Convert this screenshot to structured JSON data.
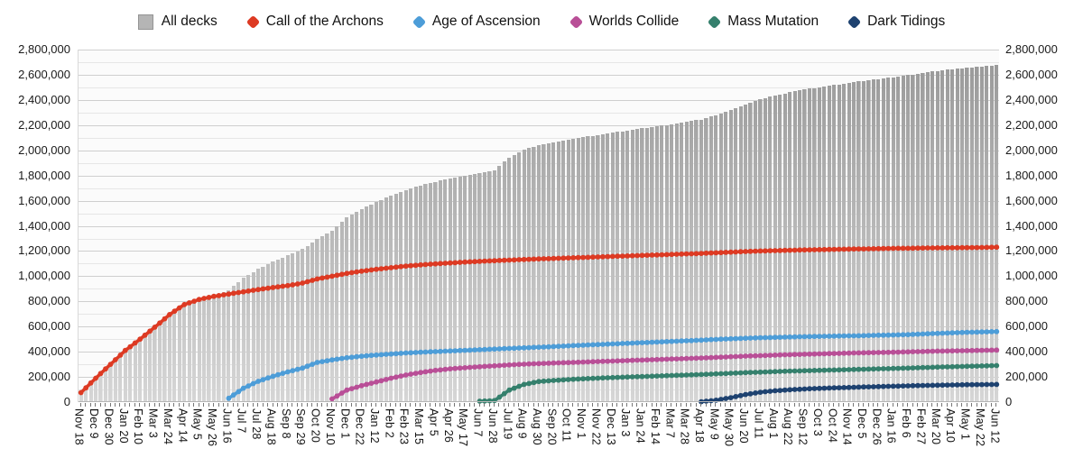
{
  "legend": {
    "items": [
      {
        "label": "All decks",
        "marker": "square",
        "color": "#b5b5b5"
      },
      {
        "label": "Call of the Archons",
        "marker": "diamond",
        "color": "#dd3a23"
      },
      {
        "label": "Age of Ascension",
        "marker": "diamond",
        "color": "#4d9dd8"
      },
      {
        "label": "Worlds Collide",
        "marker": "diamond",
        "color": "#b94f97"
      },
      {
        "label": "Mass Mutation",
        "marker": "diamond",
        "color": "#35806d"
      },
      {
        "label": "Dark Tidings",
        "marker": "diamond",
        "color": "#1e4270"
      }
    ]
  },
  "chart_data": {
    "type": "bar",
    "note_types": "All decks rendered as weekly bars; five expansion sets rendered as beaded cumulative lines",
    "points_per_label": 3,
    "x_labels": [
      "Nov 18",
      "Dec 9",
      "Dec 30",
      "Jan 20",
      "Feb 10",
      "Mar 3",
      "Mar 24",
      "Apr 14",
      "May 5",
      "May 26",
      "Jun 16",
      "Jul 7",
      "Jul 28",
      "Aug 18",
      "Sep 8",
      "Sep 29",
      "Oct 20",
      "Nov 10",
      "Dec 1",
      "Dec 22",
      "Jan 12",
      "Feb 2",
      "Feb 23",
      "Mar 15",
      "Apr 5",
      "Apr 26",
      "May 17",
      "Jun 7",
      "Jun 28",
      "Jul 19",
      "Aug 9",
      "Aug 30",
      "Sep 20",
      "Oct 11",
      "Nov 1",
      "Nov 22",
      "Dec 13",
      "Jan 3",
      "Jan 24",
      "Feb 14",
      "Mar 7",
      "Mar 28",
      "Apr 18",
      "May 9",
      "May 30",
      "Jun 20",
      "Jul 11",
      "Aug 1",
      "Aug 22",
      "Sep 12",
      "Oct 3",
      "Oct 24",
      "Nov 14",
      "Dec 5",
      "Dec 26",
      "Jan 16",
      "Feb 6",
      "Feb 27",
      "Mar 20",
      "Apr 10",
      "May 1",
      "May 22",
      "Jun 12"
    ],
    "y_axis": {
      "min": 0,
      "max": 2800000,
      "major_step": 200000,
      "minor_step": 100000,
      "tick_labels": [
        "0",
        "200,000",
        "400,000",
        "600,000",
        "800,000",
        "1,000,000",
        "1,200,000",
        "1,400,000",
        "1,600,000",
        "1,800,000",
        "2,000,000",
        "2,200,000",
        "2,400,000",
        "2,600,000",
        "2,800,000"
      ],
      "sides": [
        "left",
        "right"
      ]
    },
    "series": [
      {
        "name": "All decks",
        "type": "bar",
        "color": "#b5b5b5",
        "values": [
          75000,
          190000,
          300000,
          410000,
          500000,
          595000,
          695000,
          775000,
          815000,
          840000,
          888000,
          986000,
          1059000,
          1115000,
          1165000,
          1215000,
          1293000,
          1360000,
          1469000,
          1534000,
          1589000,
          1640000,
          1685000,
          1721000,
          1751000,
          1775000,
          1796000,
          1822000,
          1844000,
          1944000,
          2005000,
          2042000,
          2064000,
          2085000,
          2104000,
          2122000,
          2140000,
          2157000,
          2174000,
          2191000,
          2208000,
          2225000,
          2245000,
          2279000,
          2318000,
          2366000,
          2404000,
          2435000,
          2461000,
          2483000,
          2502000,
          2519000,
          2535000,
          2552000,
          2566000,
          2581000,
          2597000,
          2615000,
          2631000,
          2644000,
          2656000,
          2667000,
          2678000
        ]
      },
      {
        "name": "Call of the Archons",
        "type": "line",
        "color": "#dd3a23",
        "values": [
          75000,
          190000,
          300000,
          410000,
          500000,
          595000,
          695000,
          775000,
          815000,
          840000,
          858000,
          876000,
          894000,
          910000,
          925000,
          945000,
          978000,
          1000000,
          1022000,
          1040000,
          1055000,
          1068000,
          1080000,
          1090000,
          1098000,
          1105000,
          1112000,
          1118000,
          1123000,
          1128000,
          1133000,
          1137000,
          1141000,
          1145000,
          1149000,
          1153000,
          1157000,
          1161000,
          1165000,
          1169000,
          1173000,
          1177000,
          1181000,
          1186000,
          1191000,
          1196000,
          1200000,
          1203000,
          1206000,
          1209000,
          1211000,
          1213000,
          1215000,
          1217000,
          1219000,
          1221000,
          1222000,
          1224000,
          1225000,
          1226000,
          1227000,
          1228000,
          1230000
        ]
      },
      {
        "name": "Age of Ascension",
        "type": "line",
        "color": "#4d9dd8",
        "values": [
          null,
          null,
          null,
          null,
          null,
          null,
          null,
          null,
          null,
          null,
          30000,
          110000,
          165000,
          205000,
          240000,
          270000,
          315000,
          335000,
          352000,
          364000,
          374000,
          382000,
          390000,
          396000,
          401000,
          406000,
          411000,
          416000,
          421000,
          426000,
          431000,
          436000,
          441000,
          447000,
          452000,
          457000,
          462000,
          467000,
          472000,
          477000,
          482000,
          487000,
          492000,
          498000,
          503000,
          507000,
          511000,
          514000,
          517000,
          520000,
          522000,
          524000,
          526000,
          528000,
          531000,
          533000,
          536000,
          541000,
          546000,
          550000,
          554000,
          557000,
          560000
        ]
      },
      {
        "name": "Worlds Collide",
        "type": "line",
        "color": "#b94f97",
        "values": [
          null,
          null,
          null,
          null,
          null,
          null,
          null,
          null,
          null,
          null,
          null,
          null,
          null,
          null,
          null,
          null,
          null,
          25000,
          95000,
          130000,
          160000,
          190000,
          215000,
          235000,
          252000,
          264000,
          273000,
          281000,
          288000,
          295000,
          301000,
          306000,
          310000,
          314000,
          318000,
          322000,
          326000,
          330000,
          334000,
          338000,
          342000,
          346000,
          350000,
          355000,
          360000,
          365000,
          369000,
          373000,
          377000,
          380000,
          383000,
          386000,
          389000,
          392000,
          394000,
          396000,
          399000,
          402000,
          405000,
          407000,
          409000,
          411000,
          413000
        ]
      },
      {
        "name": "Mass Mutation",
        "type": "line",
        "color": "#35806d",
        "values": [
          null,
          null,
          null,
          null,
          null,
          null,
          null,
          null,
          null,
          null,
          null,
          null,
          null,
          null,
          null,
          null,
          null,
          null,
          null,
          null,
          null,
          null,
          null,
          null,
          null,
          null,
          null,
          7000,
          12000,
          95000,
          140000,
          163000,
          172000,
          179000,
          185000,
          190000,
          195000,
          199000,
          203000,
          207000,
          211000,
          215000,
          219000,
          224000,
          229000,
          234000,
          238000,
          242000,
          246000,
          249000,
          252000,
          255000,
          258000,
          261000,
          264000,
          267000,
          270000,
          274000,
          278000,
          281000,
          284000,
          287000,
          290000
        ]
      },
      {
        "name": "Dark Tidings",
        "type": "line",
        "color": "#1e4270",
        "values": [
          null,
          null,
          null,
          null,
          null,
          null,
          null,
          null,
          null,
          null,
          null,
          null,
          null,
          null,
          null,
          null,
          null,
          null,
          null,
          null,
          null,
          null,
          null,
          null,
          null,
          null,
          null,
          null,
          null,
          null,
          null,
          null,
          null,
          null,
          null,
          null,
          null,
          null,
          null,
          null,
          null,
          null,
          3000,
          15000,
          35000,
          60000,
          78000,
          90000,
          98000,
          104000,
          109000,
          113000,
          116000,
          120000,
          123000,
          126000,
          129000,
          132000,
          134000,
          136000,
          138000,
          139000,
          140000
        ]
      }
    ],
    "grid": "on",
    "legend_position": "top-center"
  }
}
